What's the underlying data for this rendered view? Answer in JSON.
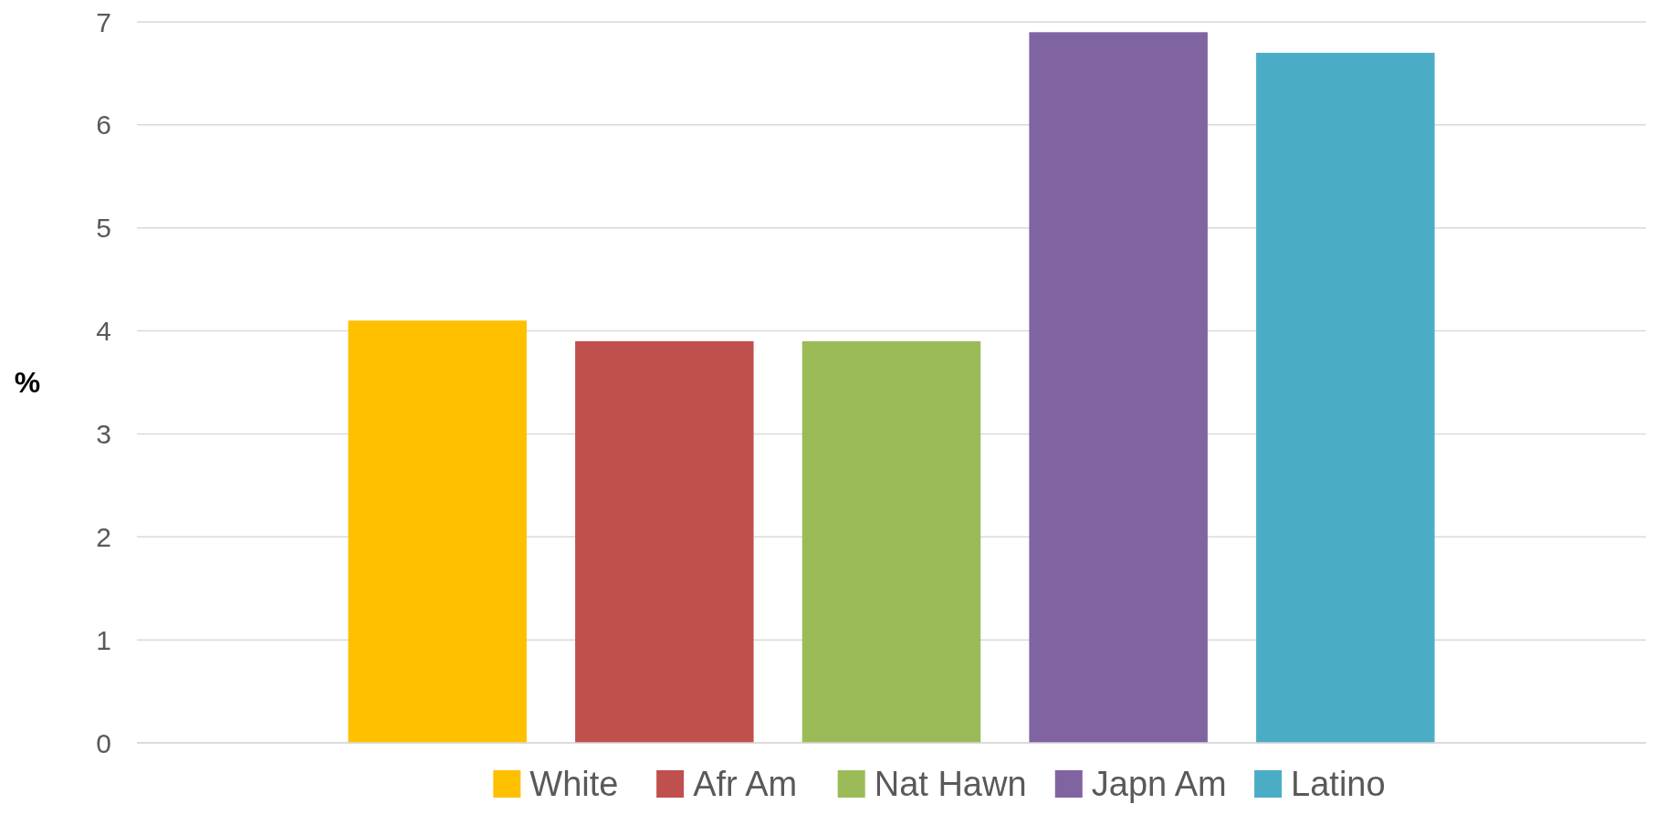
{
  "chart_data": {
    "type": "bar",
    "ylabel": "%",
    "categories": [
      null
    ],
    "series": [
      {
        "name": "White",
        "color": "#ffc000",
        "values": [
          4.1
        ]
      },
      {
        "name": "Afr Am",
        "color": "#c0504d",
        "values": [
          3.9
        ]
      },
      {
        "name": "Nat Hawn",
        "color": "#9bbb59",
        "values": [
          3.9
        ]
      },
      {
        "name": "Japn Am",
        "color": "#8064a2",
        "values": [
          6.9
        ]
      },
      {
        "name": "Latino",
        "color": "#4bacc6",
        "values": [
          6.7
        ]
      }
    ],
    "ylim": [
      0,
      7
    ],
    "yticks": [
      0,
      1,
      2,
      3,
      4,
      5,
      6,
      7
    ],
    "grid": "y",
    "legend": "bottom"
  }
}
